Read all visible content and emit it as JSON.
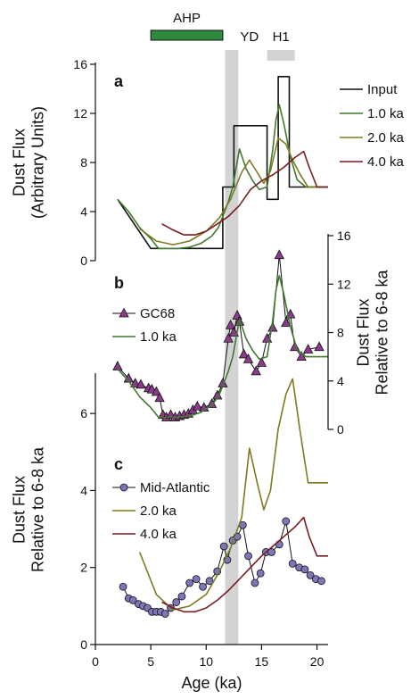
{
  "colors": {
    "input": "#111111",
    "ka1": "#3f7a2e",
    "ka2": "#7f7a22",
    "ka4": "#7a1c22",
    "gc68_marker": "#8c3b8c",
    "midatlantic_marker": "#7d76b8",
    "shade": "#d3d3d3",
    "ahp_bar": "#2e8b3e"
  },
  "chart_data": {
    "type": "line",
    "xlabel": "Age (ka)",
    "xlim": [
      0,
      21
    ],
    "xticks": [
      0,
      5,
      10,
      15,
      20
    ],
    "yd_band": [
      11.7,
      12.9
    ],
    "periods": [
      {
        "label": "AHP",
        "start": 5,
        "end": 11.5
      },
      {
        "label": "YD",
        "start": 11.7,
        "end": 12.9
      },
      {
        "label": "H1",
        "start": 15.5,
        "end": 18
      }
    ],
    "panels": [
      {
        "letter": "a",
        "ylabel": [
          "Dust Flux",
          "(Arbitrary Units)"
        ],
        "yaxis_side": "left",
        "ylim": [
          0,
          16
        ],
        "yticks": [
          0,
          4,
          8,
          12,
          16
        ],
        "legend": "right",
        "series": [
          {
            "name": "Input",
            "color_key": "input",
            "x": [
              2,
              5,
              5,
              11.5,
              11.5,
              12.5,
              12.5,
              15.5,
              15.5,
              16.5,
              16.5,
              17.5,
              17.5,
              21
            ],
            "y": [
              5,
              1,
              1,
              1,
              6,
              6,
              11,
              11,
              5,
              5,
              15,
              15,
              6,
              6
            ]
          },
          {
            "name": "1.0 ka",
            "color_key": "ka1",
            "x": [
              2,
              3,
              4,
              5,
              5.7,
              6.5,
              7.5,
              8.5,
              9.5,
              10.5,
              11.1,
              11.5,
              12,
              12.4,
              13,
              13.6,
              14.2,
              14.8,
              15.5,
              16,
              16.3,
              16.6,
              17,
              17.6,
              18.2,
              19,
              21
            ],
            "y": [
              5,
              4,
              2.7,
              1.8,
              1,
              1,
              1,
              1.1,
              1.4,
              2,
              2.7,
              3.6,
              4.8,
              6,
              9.1,
              7.5,
              6.5,
              5.8,
              6,
              9,
              11.5,
              12.7,
              11.2,
              8.5,
              6.6,
              6,
              6
            ]
          },
          {
            "name": "2.0 ka",
            "color_key": "ka2",
            "x": [
              4,
              5.5,
              7,
              8.5,
              10,
              11.2,
              12.2,
              13.2,
              13.9,
              14.6,
              15.2,
              15.8,
              16.5,
              17.2,
              17.8,
              18.5,
              19.2,
              21
            ],
            "y": [
              2.6,
              1.6,
              1.3,
              1.6,
              2.4,
              3.5,
              5,
              7.2,
              8.2,
              7.2,
              6.3,
              7.3,
              10,
              9.5,
              8.2,
              7,
              6,
              6
            ]
          },
          {
            "name": "4.0 ka",
            "color_key": "ka4",
            "x": [
              6,
              7,
              8,
              9,
              10,
              11,
              12,
              13,
              14,
              15,
              16,
              17,
              18,
              18.8,
              19.3,
              20,
              21
            ],
            "y": [
              3,
              2.5,
              2.1,
              2.1,
              2.4,
              3,
              3.6,
              4.5,
              5.8,
              6.5,
              7,
              7.6,
              8.4,
              8.9,
              7.6,
              6,
              6
            ]
          }
        ]
      },
      {
        "letter": "b",
        "ylabel": [
          "Dust Flux",
          "Relative to 6-8 ka"
        ],
        "yaxis_side": "right",
        "ylim": [
          0,
          16
        ],
        "yticks": [
          0,
          4,
          8,
          12,
          16
        ],
        "legend": "left",
        "series": [
          {
            "name": "GC68",
            "color_key": "gc68_marker",
            "marker": "triangle",
            "x": [
              2,
              3,
              3.6,
              4.1,
              4.8,
              5.1,
              5.5,
              5.8,
              6.1,
              6.4,
              6.8,
              7.2,
              7.6,
              8,
              8.4,
              8.8,
              9.2,
              9.8,
              10.5,
              11,
              11.5,
              12,
              12.2,
              12.5,
              12.8,
              13,
              13.4,
              13.8,
              14.5,
              15,
              15.5,
              16,
              16.6,
              17.2,
              17.6,
              18,
              18.6,
              19.2,
              20.2
            ],
            "y": [
              5.2,
              4.2,
              3.8,
              3.7,
              3.4,
              3.3,
              3.1,
              2.6,
              1.2,
              1,
              1.2,
              1,
              1.1,
              1.2,
              1.3,
              1.6,
              1.9,
              1.8,
              2.1,
              2.8,
              3.8,
              7.5,
              8.6,
              8,
              9.4,
              8.9,
              6.2,
              5.8,
              4.8,
              5.5,
              7.5,
              8.4,
              14.4,
              8.8,
              9.5,
              6.8,
              6,
              6.6,
              6.8
            ]
          },
          {
            "name": "1.0 ka",
            "color_key": "ka1",
            "x": [
              2,
              3,
              4,
              5,
              5.7,
              6.5,
              7.5,
              8.5,
              9.5,
              10.5,
              11.1,
              11.5,
              12,
              12.4,
              13,
              13.6,
              14.2,
              14.8,
              15.5,
              16,
              16.3,
              16.6,
              17,
              17.6,
              18.2,
              19,
              21
            ],
            "y": [
              5,
              4,
              2.7,
              1.8,
              1,
              1,
              1,
              1.1,
              1.4,
              2,
              2.7,
              3.6,
              4.8,
              6,
              9.1,
              7.5,
              6.5,
              5.8,
              6,
              9,
              11.5,
              12.7,
              11.2,
              8.5,
              6.6,
              6,
              6
            ]
          }
        ]
      },
      {
        "letter": "c",
        "ylabel": [
          "Dust Flux",
          "Relative to 6-8 ka"
        ],
        "yaxis_side": "left",
        "ylim": [
          0,
          7
        ],
        "yticks": [
          0,
          2,
          4,
          6
        ],
        "legend": "left",
        "series": [
          {
            "name": "Mid-Atlantic",
            "color_key": "midatlantic_marker",
            "marker": "circle",
            "x": [
              2.5,
              3,
              3.4,
              3.9,
              4.3,
              4.7,
              5.1,
              5.5,
              5.9,
              6.3,
              6.8,
              7.3,
              7.8,
              8.5,
              9.1,
              9.7,
              10.3,
              11,
              11.6,
              11.9,
              12.4,
              12.8,
              13.3,
              13.8,
              14.4,
              14.9,
              15.4,
              15.9,
              16.6,
              17.2,
              17.8,
              18.4,
              18.9,
              19.4,
              19.9,
              20.4
            ],
            "y": [
              1.5,
              1.2,
              1.15,
              1.05,
              1,
              0.95,
              0.85,
              0.85,
              0.85,
              0.8,
              0.95,
              1.1,
              1.25,
              1.6,
              1.7,
              1.5,
              1.65,
              1.9,
              2.55,
              2.2,
              2.7,
              2.8,
              3.1,
              2.3,
              1.6,
              1.85,
              2.4,
              2.4,
              2.6,
              3.2,
              2.1,
              2,
              1.95,
              1.8,
              1.7,
              1.65
            ]
          },
          {
            "name": "2.0 ka",
            "color_key": "ka2",
            "x": [
              4,
              5.5,
              7,
              8.5,
              10,
              11.2,
              12.2,
              13.2,
              13.9,
              14.6,
              15.2,
              15.8,
              16.5,
              17.2,
              17.8,
              18.5,
              19.2,
              21
            ],
            "y": [
              2.4,
              1.3,
              0.9,
              1,
              1.3,
              1.9,
              2.5,
              3.3,
              5.1,
              4.2,
              3.5,
              4,
              5.6,
              6.5,
              6.9,
              5.5,
              4.2,
              4.2
            ]
          },
          {
            "name": "4.0 ka",
            "color_key": "ka4",
            "x": [
              6,
              7,
              8,
              9,
              10,
              11,
              12,
              13,
              14,
              15,
              16,
              17,
              18,
              18.8,
              19.3,
              20,
              21
            ],
            "y": [
              1.1,
              0.95,
              0.85,
              0.85,
              0.95,
              1.15,
              1.4,
              1.7,
              2,
              2.3,
              2.55,
              2.8,
              3.05,
              3.3,
              2.8,
              2.3,
              2.3
            ]
          }
        ]
      }
    ]
  }
}
